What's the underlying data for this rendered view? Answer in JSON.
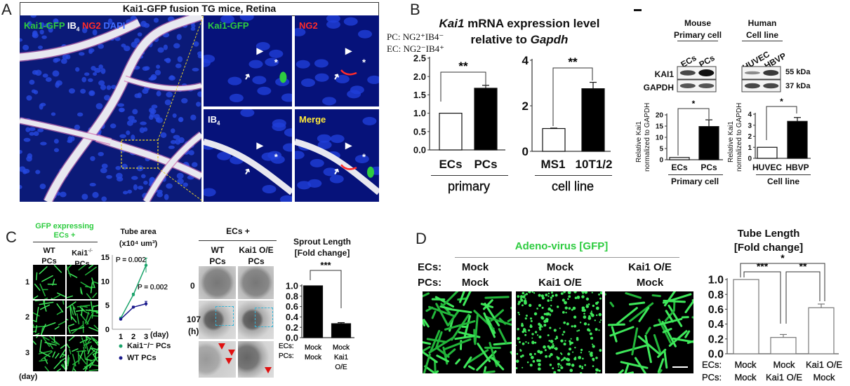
{
  "colors": {
    "gfp_green": "#2ecc40",
    "ng2_red": "#ff2b2b",
    "dapi_blue": "#3f6bff",
    "merge_yellow": "#ffe93a",
    "dashed_box": "#35b6d8",
    "arrowhead_red": "#e01010"
  },
  "panel_a": {
    "label": "A",
    "title": "Kai1-GFP fusion TG mice, Retina",
    "legend": {
      "gfp": "Kai1-GFP",
      "ib4": "IB",
      "ib4_sub": "4",
      "ng2": "NG2",
      "dapi": "DAPI"
    },
    "insets": {
      "gfp": "Kai1-GFP",
      "ng2": "NG2",
      "ib4": "IB",
      "ib4_sub": "4",
      "merge": "Merge"
    },
    "markers": {
      "arrowhead": "▶",
      "arrow": "➜",
      "asterisk": "*"
    }
  },
  "panel_b": {
    "label": "B",
    "title_italic": "Kai1",
    "title_rest": " mRNA expression level",
    "title_line2": "relative to ",
    "title_line2_italic": "Gapdh",
    "pc_def": "PC: NG2⁺IB4⁻",
    "ec_def": "EC: NG2⁻IB4⁺",
    "western": {
      "mouse": "Mouse",
      "mouse_group": "Primary cell",
      "human": "Human",
      "human_group": "Cell line",
      "mouse_lanes": [
        "ECs",
        "PCs"
      ],
      "human_lanes": [
        "HUVEC",
        "HBVP"
      ],
      "rows": [
        "KAI1",
        "GAPDH"
      ],
      "sizes": [
        "55 kDa",
        "37 kDa"
      ]
    }
  },
  "panel_c": {
    "label": "C",
    "gfp_title": "GFP expressing",
    "gfp_title2": "ECs +",
    "cols": [
      [
        "WT",
        "PCs"
      ],
      [
        "Kai1",
        "-/-",
        "PCs"
      ]
    ],
    "rows": [
      "1",
      "2",
      "3"
    ],
    "day_label": "(day)",
    "sprout_title": "ECs +",
    "sprout_cols": [
      [
        "WT",
        "PCs"
      ],
      [
        "Kai1 O/E",
        "PCs"
      ]
    ],
    "sprout_rows": [
      "0",
      "107",
      "(h)"
    ]
  },
  "panel_d": {
    "label": "D",
    "title": "Adeno-virus [GFP]",
    "row_labels": [
      "ECs:",
      "PCs:"
    ],
    "cols": [
      [
        "Mock",
        "Mock"
      ],
      [
        "Mock",
        "Kai1 O/E"
      ],
      [
        "Kai1 O/E",
        "Mock"
      ]
    ]
  },
  "chart_data": [
    {
      "type": "bar",
      "title": "Kai1 mRNA expression level relative to Gapdh",
      "categories": [
        "ECs",
        "PCs"
      ],
      "group_label": "primary",
      "values": [
        1.0,
        1.68
      ],
      "errors": [
        0,
        0.08
      ],
      "ylim": [
        0,
        2.5
      ],
      "yticks": [
        "0.0",
        "0.5",
        "1.0",
        "1.5",
        "2.0",
        "2.5"
      ],
      "fills": [
        "#ffffff",
        "#000000"
      ],
      "significance": "**"
    },
    {
      "type": "bar",
      "categories": [
        "MS1",
        "10T1/2"
      ],
      "group_label": "cell line",
      "values": [
        1.0,
        2.75
      ],
      "errors": [
        0.02,
        0.28
      ],
      "ylim": [
        0,
        4
      ],
      "yticks": [
        "0",
        "2",
        "4"
      ],
      "fills": [
        "#ffffff",
        "#000000"
      ],
      "significance": "**"
    },
    {
      "type": "bar",
      "ylabel": [
        "Relative Kai1",
        "normalized to GAPDH"
      ],
      "categories": [
        "ECs",
        "PCs"
      ],
      "group_label": "Primary cell",
      "values": [
        1.0,
        14.8
      ],
      "errors": [
        0,
        3.0
      ],
      "ylim": [
        0,
        20
      ],
      "yticks": [
        "0",
        "5",
        "10",
        "15",
        "20"
      ],
      "fills": [
        "#ffffff",
        "#000000"
      ],
      "significance": "*"
    },
    {
      "type": "bar",
      "ylabel": [
        "Relative Kai1",
        "normalized to GAPDH"
      ],
      "categories": [
        "HUVEC",
        "HBVP"
      ],
      "group_label": "Cell line",
      "values": [
        1.0,
        3.35
      ],
      "errors": [
        0,
        0.35
      ],
      "ylim": [
        0,
        4
      ],
      "yticks": [
        "0",
        "1",
        "2",
        "3",
        "4"
      ],
      "fills": [
        "#ffffff",
        "#000000"
      ],
      "significance": "*"
    },
    {
      "type": "line",
      "title": "Tube area",
      "ylabel": "(x10⁴ um³)",
      "x": [
        1,
        2,
        3
      ],
      "xticks": [
        "1",
        "2",
        "3"
      ],
      "xlabel": "(day)",
      "ylim": [
        0,
        15
      ],
      "yticks": [
        "0",
        "5",
        "10",
        "15"
      ],
      "series": [
        {
          "name": "Kai1⁻/⁻ PCs",
          "values": [
            2.3,
            7.2,
            13.3
          ],
          "errors": [
            0.2,
            0.3,
            1.5
          ],
          "color": "#1aa36a",
          "marker": "star"
        },
        {
          "name": "WT PCs",
          "values": [
            2.1,
            4.6,
            5.3
          ],
          "errors": [
            0.1,
            0.2,
            0.5
          ],
          "color": "#1a1a8c",
          "marker": "diamond"
        }
      ],
      "annotations": [
        "P = 0.002",
        "P = 0.002"
      ],
      "legend": "bottom"
    },
    {
      "type": "bar",
      "title": [
        "Sprout Length",
        "[Fold change]"
      ],
      "row_labels": [
        "ECs:",
        "PCs:"
      ],
      "categories": [
        [
          "Mock",
          "Mock"
        ],
        [
          "Mock",
          "Kai1",
          "O/E"
        ]
      ],
      "values": [
        1.0,
        0.27
      ],
      "errors": [
        0,
        0.02
      ],
      "ylim": [
        0,
        1.0
      ],
      "yticks": [
        "0.0",
        "0.2",
        "0.4",
        "0.6",
        "0.8",
        "1.0"
      ],
      "fills": [
        "#000000",
        "#000000"
      ],
      "significance": "***"
    },
    {
      "type": "bar",
      "title": [
        "Tube Length",
        "[Fold change]"
      ],
      "row_labels": [
        "ECs:",
        "PCs:"
      ],
      "categories": [
        [
          "Mock",
          "Mock"
        ],
        [
          "Mock",
          "Kai1 O/E"
        ],
        [
          "Kai1 O/E",
          "Mock"
        ]
      ],
      "values": [
        1.0,
        0.22,
        0.62
      ],
      "errors": [
        0,
        0.04,
        0.05
      ],
      "ylim": [
        0,
        1.0
      ],
      "yticks": [
        "0.0",
        "0.2",
        "0.4",
        "0.6",
        "0.8",
        "1.0"
      ],
      "fills": [
        "#ffffff",
        "#ffffff",
        "#ffffff"
      ],
      "significance": [
        "***",
        "**",
        "*"
      ]
    }
  ]
}
